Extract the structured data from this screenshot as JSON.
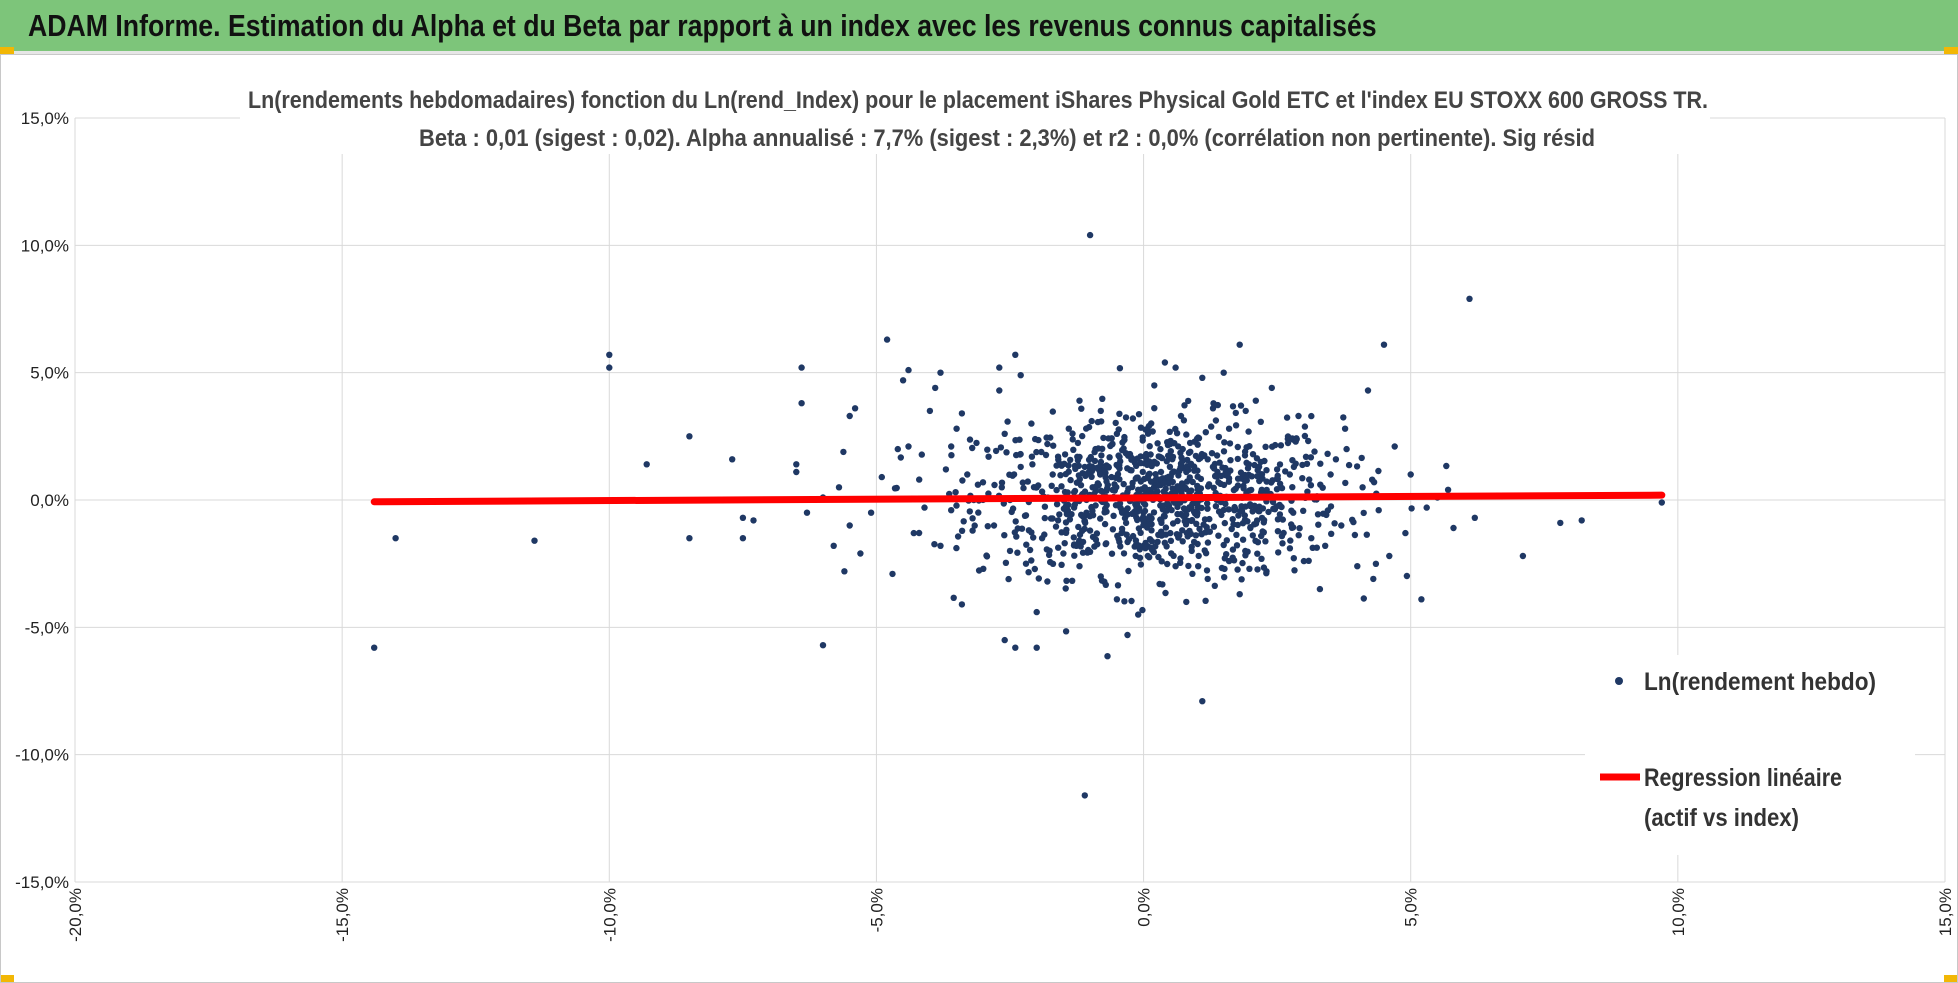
{
  "header": {
    "title": "ADAM Informe. Estimation du Alpha et du Beta par rapport à un index avec les revenus connus capitalisés"
  },
  "colors": {
    "header_bg": "#7dc57a",
    "points": "#1f3864",
    "regression": "#ff0000",
    "corner_accent": "#f2b705"
  },
  "chart_data": {
    "type": "scatter",
    "title_lines": [
      "Ln(rendements hebdomadaires) fonction du Ln(rend_Index) pour le placement iShares Physical Gold ETC et l'index EU STOXX 600 GROSS TR.",
      "Beta : 0,01 (sigest : 0,02). Alpha annualisé : 7,7% (sigest : 2,3%) et r2 : 0,0% (corrélation non pertinente). Sig résid"
    ],
    "xlim": [
      -0.2,
      0.15
    ],
    "ylim": [
      -0.15,
      0.15
    ],
    "x_ticks": [
      {
        "v": -0.2,
        "label": "-20,0%"
      },
      {
        "v": -0.15,
        "label": "-15,0%"
      },
      {
        "v": -0.1,
        "label": "-10,0%"
      },
      {
        "v": -0.05,
        "label": "-5,0%"
      },
      {
        "v": 0.0,
        "label": "0,0%"
      },
      {
        "v": 0.05,
        "label": "5,0%"
      },
      {
        "v": 0.1,
        "label": "10,0%"
      },
      {
        "v": 0.15,
        "label": "15,0%"
      }
    ],
    "y_ticks": [
      {
        "v": 0.15,
        "label": "15,0%"
      },
      {
        "v": 0.1,
        "label": "10,0%"
      },
      {
        "v": 0.05,
        "label": "5,0%"
      },
      {
        "v": 0.0,
        "label": "0,0%"
      },
      {
        "v": -0.05,
        "label": "-5,0%"
      },
      {
        "v": -0.1,
        "label": "-10,0%"
      },
      {
        "v": -0.15,
        "label": "-15,0%"
      }
    ],
    "grid": true,
    "legend_position": "right",
    "series": [
      {
        "name": "Ln(rendement hebdo)",
        "kind": "scatter",
        "color": "#1f3864",
        "points": [
          [
            -0.144,
            -0.058
          ],
          [
            -0.14,
            -0.015
          ],
          [
            -0.114,
            -0.016
          ],
          [
            -0.1,
            0.052
          ],
          [
            -0.1,
            0.057
          ],
          [
            -0.093,
            0.014
          ],
          [
            -0.085,
            0.025
          ],
          [
            -0.085,
            -0.015
          ],
          [
            -0.077,
            0.016
          ],
          [
            -0.075,
            -0.015
          ],
          [
            -0.075,
            -0.007
          ],
          [
            -0.073,
            -0.008
          ],
          [
            -0.065,
            0.011
          ],
          [
            -0.065,
            0.014
          ],
          [
            -0.064,
            0.052
          ],
          [
            -0.064,
            0.038
          ],
          [
            -0.063,
            -0.005
          ],
          [
            -0.06,
            -0.057
          ],
          [
            -0.06,
            0.001
          ],
          [
            -0.058,
            -0.018
          ],
          [
            -0.057,
            0.005
          ],
          [
            -0.056,
            -0.028
          ],
          [
            -0.055,
            -0.01
          ],
          [
            -0.055,
            0.033
          ],
          [
            -0.054,
            0.036
          ],
          [
            -0.053,
            -0.021
          ],
          [
            -0.051,
            -0.005
          ],
          [
            -0.049,
            0.009
          ],
          [
            -0.048,
            0.063
          ],
          [
            -0.047,
            -0.029
          ],
          [
            -0.046,
            0.02
          ],
          [
            -0.045,
            0.047
          ],
          [
            -0.044,
            0.051
          ],
          [
            -0.044,
            0.021
          ],
          [
            -0.043,
            -0.013
          ],
          [
            -0.042,
            0.008
          ],
          [
            -0.041,
            -0.003
          ],
          [
            -0.04,
            0.035
          ],
          [
            -0.039,
            0.044
          ],
          [
            -0.038,
            0.05
          ],
          [
            -0.038,
            -0.018
          ],
          [
            -0.037,
            0.012
          ],
          [
            -0.036,
            -0.004
          ],
          [
            -0.036,
            0.021
          ],
          [
            -0.035,
            0.028
          ],
          [
            -0.034,
            -0.041
          ],
          [
            -0.034,
            0.034
          ],
          [
            -0.033,
            0.01
          ],
          [
            -0.032,
            -0.012
          ],
          [
            -0.031,
            0.006
          ],
          [
            -0.03,
            -0.027
          ],
          [
            -0.029,
            0.017
          ],
          [
            -0.028,
            -0.01
          ],
          [
            -0.027,
            0.052
          ],
          [
            -0.027,
            0.043
          ],
          [
            -0.026,
            -0.055
          ],
          [
            -0.026,
            0.026
          ],
          [
            -0.025,
            -0.02
          ],
          [
            -0.025,
            0.0
          ],
          [
            -0.024,
            -0.058
          ],
          [
            -0.024,
            0.057
          ],
          [
            -0.023,
            0.049
          ],
          [
            -0.023,
            0.013
          ],
          [
            -0.022,
            -0.025
          ],
          [
            -0.022,
            -0.006
          ],
          [
            -0.021,
            0.03
          ],
          [
            -0.02,
            -0.044
          ],
          [
            -0.02,
            -0.058
          ],
          [
            -0.02,
            0.005
          ],
          [
            -0.019,
            -0.015
          ],
          [
            -0.018,
            0.022
          ],
          [
            -0.018,
            -0.032
          ],
          [
            -0.017,
            0.01
          ],
          [
            -0.016,
            -0.008
          ],
          [
            -0.016,
            0.017
          ],
          [
            -0.015,
            -0.021
          ],
          [
            -0.014,
            0.028
          ],
          [
            -0.013,
            -0.003
          ],
          [
            -0.013,
            0.003
          ],
          [
            -0.012,
            0.039
          ],
          [
            -0.012,
            -0.026
          ],
          [
            -0.011,
            -0.116
          ],
          [
            -0.011,
            0.013
          ],
          [
            -0.01,
            0.104
          ],
          [
            -0.01,
            -0.012
          ],
          [
            -0.009,
            0.02
          ],
          [
            -0.008,
            -0.03
          ],
          [
            -0.008,
            0.035
          ],
          [
            -0.007,
            -0.017
          ],
          [
            -0.006,
            0.009
          ],
          [
            -0.005,
            0.026
          ],
          [
            -0.005,
            -0.039
          ],
          [
            -0.004,
            -0.005
          ],
          [
            -0.003,
            -0.053
          ],
          [
            -0.003,
            0.018
          ],
          [
            -0.002,
            0.032
          ],
          [
            -0.001,
            -0.045
          ],
          [
            -0.001,
            0.004
          ],
          [
            0.0,
            -0.018
          ],
          [
            0.001,
            0.029
          ],
          [
            0.001,
            -0.008
          ],
          [
            0.002,
            0.015
          ],
          [
            0.002,
            0.045
          ],
          [
            0.003,
            -0.033
          ],
          [
            0.004,
            0.054
          ],
          [
            0.004,
            0.008
          ],
          [
            0.005,
            -0.013
          ],
          [
            0.005,
            0.022
          ],
          [
            0.006,
            0.052
          ],
          [
            0.006,
            -0.026
          ],
          [
            0.007,
            0.001
          ],
          [
            0.007,
            0.033
          ],
          [
            0.008,
            -0.04
          ],
          [
            0.008,
            0.011
          ],
          [
            0.009,
            -0.02
          ],
          [
            0.01,
            0.024
          ],
          [
            0.01,
            -0.006
          ],
          [
            0.011,
            0.048
          ],
          [
            0.011,
            -0.079
          ],
          [
            0.012,
            -0.031
          ],
          [
            0.012,
            0.016
          ],
          [
            0.013,
            0.036
          ],
          [
            0.014,
            -0.014
          ],
          [
            0.014,
            0.007
          ],
          [
            0.015,
            0.05
          ],
          [
            0.016,
            -0.024
          ],
          [
            0.016,
            0.028
          ],
          [
            0.017,
            -0.004
          ],
          [
            0.018,
            0.061
          ],
          [
            0.018,
            -0.037
          ],
          [
            0.019,
            0.019
          ],
          [
            0.02,
            -0.011
          ],
          [
            0.021,
            0.039
          ],
          [
            0.022,
            0.003
          ],
          [
            0.023,
            -0.028
          ],
          [
            0.024,
            0.044
          ],
          [
            0.025,
            0.012
          ],
          [
            0.026,
            -0.017
          ],
          [
            0.027,
            0.024
          ],
          [
            0.028,
            -0.005
          ],
          [
            0.029,
            0.033
          ],
          [
            0.03,
            -0.024
          ],
          [
            0.031,
            0.008
          ],
          [
            0.032,
            0.019
          ],
          [
            0.033,
            -0.035
          ],
          [
            0.034,
            -0.018
          ],
          [
            0.035,
            0.01
          ],
          [
            0.036,
            0.016
          ],
          [
            0.037,
            -0.01
          ],
          [
            0.038,
            0.02
          ],
          [
            0.04,
            -0.026
          ],
          [
            0.041,
            0.005
          ],
          [
            0.042,
            0.043
          ],
          [
            0.043,
            -0.031
          ],
          [
            0.044,
            -0.004
          ],
          [
            0.045,
            0.061
          ],
          [
            0.046,
            -0.022
          ],
          [
            0.047,
            0.021
          ],
          [
            0.049,
            -0.013
          ],
          [
            0.05,
            0.01
          ],
          [
            0.052,
            -0.039
          ],
          [
            0.053,
            -0.003
          ],
          [
            0.055,
            0.001
          ],
          [
            0.057,
            0.004
          ],
          [
            0.058,
            -0.011
          ],
          [
            0.061,
            0.079
          ],
          [
            0.062,
            -0.007
          ],
          [
            0.071,
            -0.022
          ],
          [
            0.078,
            -0.009
          ],
          [
            0.082,
            -0.008
          ],
          [
            0.097,
            -0.001
          ]
        ]
      },
      {
        "name": "Regression linéaire (actif vs index)",
        "kind": "line",
        "color": "#ff0000",
        "points": [
          [
            -0.144,
            -0.0007
          ],
          [
            0.097,
            0.0019
          ]
        ]
      }
    ]
  },
  "legend": {
    "scatter_label": "Ln(rendement hebdo)",
    "line_label_1": "Regression linéaire",
    "line_label_2": "(actif vs index)"
  }
}
